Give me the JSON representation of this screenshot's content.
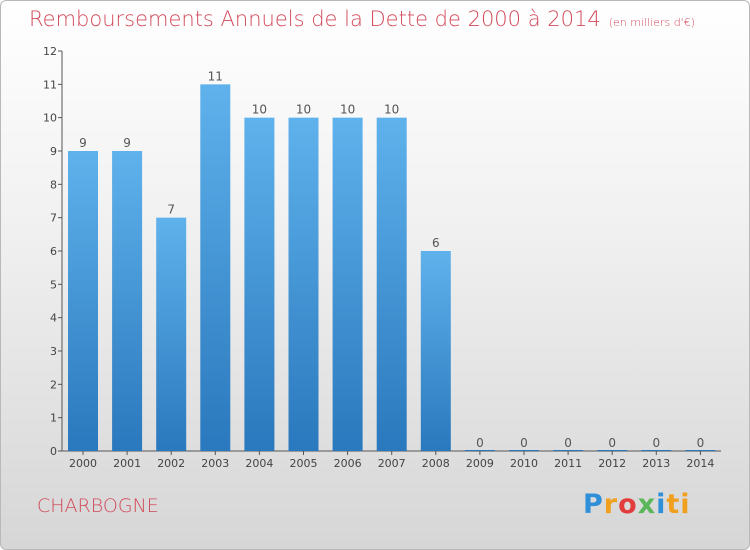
{
  "header": {
    "title": "Remboursements Annuels de la Dette de 2000 à 2014",
    "unit": "(en milliers d'€)"
  },
  "footer": {
    "commune": "CHARBOGNE",
    "brand": [
      "P",
      "r",
      "o",
      "x",
      "i",
      "ti"
    ]
  },
  "chart_data": {
    "type": "bar",
    "title": "Remboursements Annuels de la Dette de 2000 à 2014",
    "subtitle": "(en milliers d'€)",
    "xlabel": "",
    "ylabel": "",
    "categories": [
      "2000",
      "2001",
      "2002",
      "2003",
      "2004",
      "2005",
      "2006",
      "2007",
      "2008",
      "2009",
      "2010",
      "2011",
      "2012",
      "2013",
      "2014"
    ],
    "values": [
      9,
      9,
      7,
      11,
      10,
      10,
      10,
      10,
      6,
      0,
      0,
      0,
      0,
      0,
      0
    ],
    "ylim": [
      0,
      12
    ],
    "yticks": [
      0,
      1,
      2,
      3,
      4,
      5,
      6,
      7,
      8,
      9,
      10,
      11,
      12
    ],
    "grid": false,
    "bar_color": "#4a9fe0",
    "bar_color_dark": "#2b7bc0",
    "text_color": "#d2495a"
  }
}
